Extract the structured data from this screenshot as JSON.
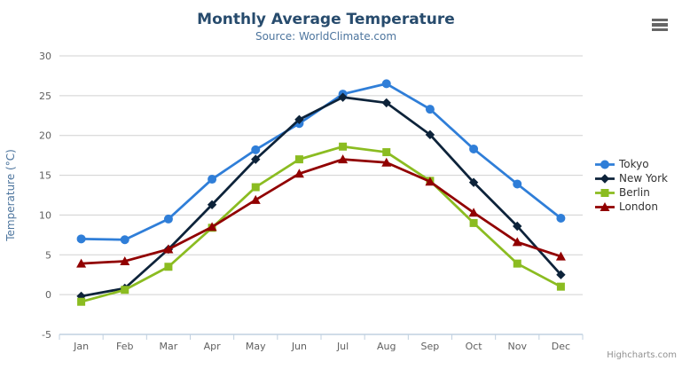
{
  "chart_data": {
    "type": "line",
    "title": "Monthly Average Temperature",
    "subtitle": "Source: WorldClimate.com",
    "xlabel": "",
    "ylabel": "Temperature (°C)",
    "categories": [
      "Jan",
      "Feb",
      "Mar",
      "Apr",
      "May",
      "Jun",
      "Jul",
      "Aug",
      "Sep",
      "Oct",
      "Nov",
      "Dec"
    ],
    "series": [
      {
        "name": "Tokyo",
        "color": "#2f7ed8",
        "marker": "circle",
        "values": [
          7.0,
          6.9,
          9.5,
          14.5,
          18.2,
          21.5,
          25.2,
          26.5,
          23.3,
          18.3,
          13.9,
          9.6
        ]
      },
      {
        "name": "New York",
        "color": "#0d233a",
        "marker": "diamond",
        "values": [
          -0.2,
          0.8,
          5.7,
          11.3,
          17.0,
          22.0,
          24.8,
          24.1,
          20.1,
          14.1,
          8.6,
          2.5
        ]
      },
      {
        "name": "Berlin",
        "color": "#8bbc21",
        "marker": "square",
        "values": [
          -0.9,
          0.6,
          3.5,
          8.4,
          13.5,
          17.0,
          18.6,
          17.9,
          14.3,
          9.0,
          3.9,
          1.0
        ]
      },
      {
        "name": "London",
        "color": "#910000",
        "marker": "triangle",
        "values": [
          3.9,
          4.2,
          5.7,
          8.5,
          11.9,
          15.2,
          17.0,
          16.6,
          14.2,
          10.3,
          6.6,
          4.8
        ]
      }
    ],
    "ylim": [
      -5,
      30
    ],
    "y_tick_labels": [
      "-5",
      "0",
      "5",
      "10",
      "15",
      "20",
      "25",
      "30"
    ],
    "grid": true,
    "legend_position": "right"
  },
  "theme": {
    "title_color": "#274b6d",
    "subtitle_color": "#4d759e",
    "axis_title_color": "#4d759e",
    "axis_label_color": "#606060",
    "grid_color": "#d0d0d0",
    "axis_line_color": "#c0d0e0",
    "legend_text_color": "#333333",
    "credits_color": "#909090",
    "menu_icon_color": "#666666"
  },
  "credits": {
    "label": "Highcharts.com"
  }
}
